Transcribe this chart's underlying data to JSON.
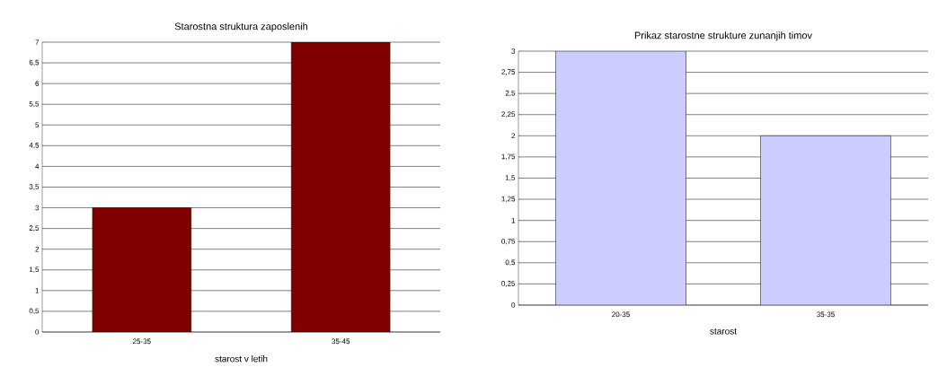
{
  "chart_data": [
    {
      "type": "bar",
      "title": "Starostna struktura zaposlenih",
      "xlabel": "starost v letih",
      "categories": [
        "25-35",
        "35-45"
      ],
      "values": [
        3,
        7
      ],
      "color": "#800000",
      "ylim": [
        0,
        7
      ],
      "yticks": [
        0,
        {
          "value": 0.5,
          "label": "0,5"
        },
        1,
        {
          "value": 1.5,
          "label": "1,5"
        },
        2,
        {
          "value": 2.5,
          "label": "2,5"
        },
        3,
        {
          "value": 3.5,
          "label": "3,5"
        },
        4,
        {
          "value": 4.5,
          "label": "4,5"
        },
        5,
        {
          "value": 5.5,
          "label": "5,5"
        },
        6,
        {
          "value": 6.5,
          "label": "6,5"
        },
        7
      ],
      "grid": "y"
    },
    {
      "type": "bar",
      "title": "Prikaz starostne strukture zunanjih timov",
      "xlabel": "starost",
      "categories": [
        "20-35",
        "35-35"
      ],
      "values": [
        3,
        2
      ],
      "color": "#ccccff",
      "ylim": [
        0,
        3
      ],
      "yticks": [
        0,
        {
          "value": 0.25,
          "label": "0,25"
        },
        {
          "value": 0.5,
          "label": "0,5"
        },
        {
          "value": 0.75,
          "label": "0,75"
        },
        1,
        {
          "value": 1.25,
          "label": "1,25"
        },
        {
          "value": 1.5,
          "label": "1,5"
        },
        {
          "value": 1.75,
          "label": "1,75"
        },
        2,
        {
          "value": 2.25,
          "label": "2,25"
        },
        {
          "value": 2.5,
          "label": "2,5"
        },
        {
          "value": 2.75,
          "label": "2,75"
        },
        3
      ],
      "grid": "y"
    }
  ]
}
